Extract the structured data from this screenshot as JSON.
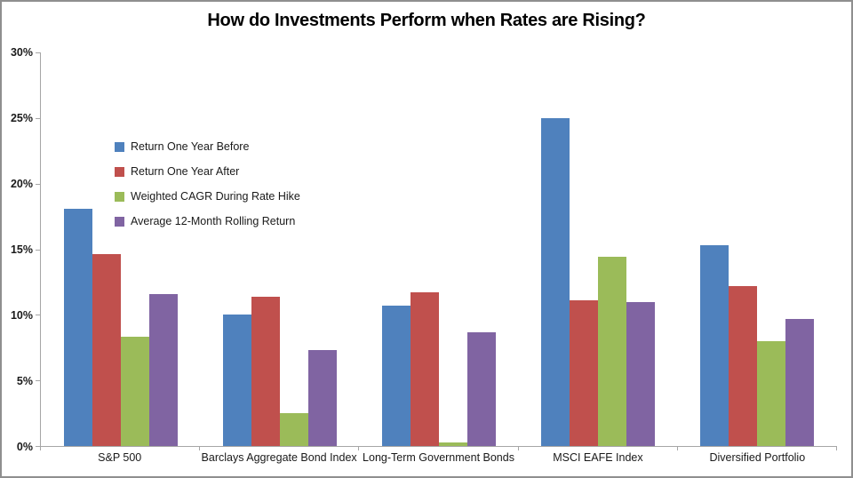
{
  "title": "How do Investments Perform when Rates are Rising?",
  "chart_data": {
    "type": "bar",
    "title": "How do Investments Perform when Rates are Rising?",
    "categories": [
      "S&P 500",
      "Barclays Aggregate Bond Index",
      "Long-Term Government Bonds",
      "MSCI EAFE Index",
      "Diversified Portfolio"
    ],
    "series": [
      {
        "name": "Return One Year Before",
        "color": "#4F81BD",
        "values": [
          18.1,
          10.0,
          10.7,
          25.0,
          15.3
        ]
      },
      {
        "name": "Return One Year After",
        "color": "#C0504D",
        "values": [
          14.6,
          11.4,
          11.7,
          11.1,
          12.2
        ]
      },
      {
        "name": "Weighted CAGR During Rate Hike",
        "color": "#9BBB59",
        "values": [
          8.3,
          2.5,
          0.3,
          14.4,
          8.0
        ]
      },
      {
        "name": "Average 12-Month Rolling Return",
        "color": "#8064A2",
        "values": [
          11.6,
          7.3,
          8.7,
          11.0,
          9.7
        ]
      }
    ],
    "xlabel": "",
    "ylabel": "",
    "ylim": [
      0,
      30
    ],
    "y_tick_step": 5,
    "y_tick_labels": [
      "0%",
      "5%",
      "10%",
      "15%",
      "20%",
      "25%",
      "30%"
    ],
    "grid": false,
    "legend_position": "top-left-inside"
  },
  "colors": {
    "axis": "#a6a6a6",
    "border": "#8f8f8f",
    "text": "#1a1a1a",
    "background": "#ffffff"
  }
}
